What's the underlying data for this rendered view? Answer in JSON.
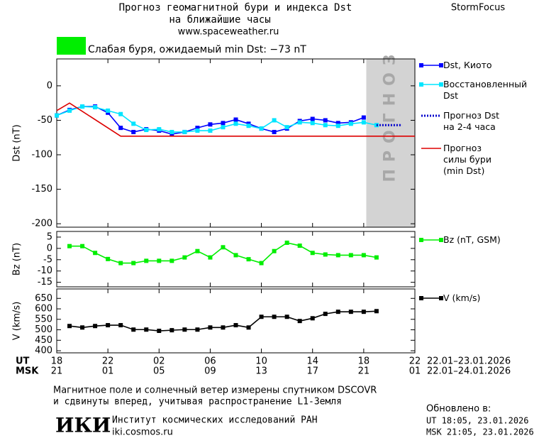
{
  "header": {
    "title_1": "Прогноз геомагнитной бури и индекса Dst",
    "title_2": "на ближайшие часы",
    "site": "www.spaceweather.ru",
    "brand": "StormFocus",
    "status_color": "#00ee00",
    "status": "Слабая буря, ожидаемый min Dst: −73 nT"
  },
  "chart_data": [
    {
      "type": "line",
      "ylabel": "Dst (nT)",
      "xlim": [
        0,
        28
      ],
      "ylim": [
        -205,
        39
      ],
      "yticks": [
        0,
        -50,
        -100,
        -150,
        -200
      ],
      "grid": false,
      "shaded_region": {
        "x": [
          24.2,
          28
        ],
        "label": "ПРОГНОЗ",
        "color": "#d3d3d3"
      },
      "series": [
        {
          "name": "Dst, Киото",
          "color": "#0000ff",
          "marker": true,
          "dash": false,
          "x": [
            0,
            1,
            2,
            3,
            4,
            5,
            6,
            7,
            8,
            9,
            10,
            11,
            12,
            13,
            14,
            15,
            16,
            17,
            18,
            19,
            20,
            21,
            22,
            23,
            24
          ],
          "values": [
            -43,
            -35,
            -30,
            -30,
            -39,
            -61,
            -67,
            -63,
            -65,
            -70,
            -67,
            -61,
            -56,
            -54,
            -49,
            -55,
            -62,
            -67,
            -62,
            -51,
            -48,
            -50,
            -54,
            -53,
            -46
          ]
        },
        {
          "name": "Восстановленный\nDst",
          "color": "#00e5ff",
          "marker": true,
          "dash": false,
          "x": [
            0,
            1,
            2,
            3,
            4,
            5,
            6,
            7,
            8,
            9,
            10,
            11,
            12,
            13,
            14,
            15,
            16,
            17,
            18,
            19,
            20,
            21,
            22,
            23,
            24,
            25
          ],
          "values": [
            -43,
            -36,
            -30,
            -31,
            -36,
            -41,
            -55,
            -64,
            -63,
            -67,
            -67,
            -65,
            -65,
            -60,
            -55,
            -58,
            -62,
            -50,
            -60,
            -53,
            -54,
            -57,
            -58,
            -55,
            -53,
            -57
          ]
        },
        {
          "name": "Прогноз Dst\nна 2-4 часа",
          "color": "#0000cc",
          "marker": false,
          "dash": true,
          "x": [
            25,
            26,
            27
          ],
          "values": [
            -57,
            -57,
            -57
          ]
        },
        {
          "name": "Прогноз\nсилы бури\n(min Dst)",
          "color": "#dd0000",
          "marker": false,
          "dash": false,
          "x": [
            0,
            1,
            5,
            28
          ],
          "values": [
            -36,
            -25,
            -73,
            -73
          ]
        }
      ]
    },
    {
      "type": "line",
      "ylabel": "Bz (nT)",
      "xlim": [
        0,
        28
      ],
      "ylim": [
        -17,
        7.5
      ],
      "yticks": [
        5,
        0,
        -5,
        -10,
        -15
      ],
      "grid": false,
      "series": [
        {
          "name": "Bz (nT, GSM)",
          "color": "#00ee00",
          "marker": true,
          "dash": false,
          "x": [
            1,
            2,
            3,
            4,
            5,
            6,
            7,
            8,
            9,
            10,
            11,
            12,
            13,
            14,
            15,
            16,
            17,
            18,
            19,
            20,
            21,
            22,
            23,
            24,
            25
          ],
          "values": [
            1,
            1,
            -2,
            -4.7,
            -6.5,
            -6.5,
            -5.5,
            -5.5,
            -5.5,
            -4,
            -1.2,
            -4,
            0.5,
            -3,
            -4.8,
            -6.5,
            -1.2,
            2.5,
            1.2,
            -2,
            -2.7,
            -3,
            -3,
            -3,
            -4
          ]
        }
      ]
    },
    {
      "type": "line",
      "ylabel": "V (km/s)",
      "xlim": [
        0,
        28
      ],
      "ylim": [
        390,
        695
      ],
      "yticks": [
        400,
        450,
        500,
        550,
        600,
        650
      ],
      "grid": false,
      "xaxis_label": "UT",
      "x_range": "22.01–23.01.2026",
      "xticks": [
        {
          "value": 0,
          "label": "18"
        },
        {
          "value": 4,
          "label": "22"
        },
        {
          "value": 8,
          "label": "02"
        },
        {
          "value": 12,
          "label": "06"
        },
        {
          "value": 16,
          "label": "10"
        },
        {
          "value": 20,
          "label": "14"
        },
        {
          "value": 24,
          "label": "18"
        },
        {
          "value": 28,
          "label": "22"
        }
      ],
      "x2axis_label": "MSK",
      "x2_range": "22.01–24.01.2026",
      "x2ticks": [
        {
          "value": 0,
          "label": "21"
        },
        {
          "value": 4,
          "label": "01"
        },
        {
          "value": 8,
          "label": "05"
        },
        {
          "value": 12,
          "label": "09"
        },
        {
          "value": 16,
          "label": "13"
        },
        {
          "value": 20,
          "label": "17"
        },
        {
          "value": 24,
          "label": "21"
        },
        {
          "value": 28,
          "label": "01"
        }
      ],
      "series": [
        {
          "name": "V (km/s)",
          "color": "#000000",
          "marker": true,
          "dash": false,
          "x": [
            1,
            2,
            3,
            4,
            5,
            6,
            7,
            8,
            9,
            10,
            11,
            12,
            13,
            14,
            15,
            16,
            17,
            18,
            19,
            20,
            21,
            22,
            23,
            24,
            25
          ],
          "values": [
            518,
            511,
            518,
            522,
            522,
            501,
            501,
            495,
            498,
            501,
            501,
            511,
            511,
            522,
            511,
            562,
            562,
            562,
            542,
            555,
            576,
            586,
            586,
            586,
            589
          ]
        }
      ]
    }
  ],
  "footer": {
    "note_1": "Магнитное поле и солнечный ветер измерены спутником DSCOVR",
    "note_2": "и сдвинуты вперед, учитывая распространение L1-Земля",
    "logo": "ИКИ",
    "institute": "Институт космических исследований РАН",
    "url": "iki.cosmos.ru",
    "updated": "Обновлено в:",
    "updated_ut": "UT  18:05, 23.01.2026",
    "updated_msk": "MSK 21:05, 23.01.2026"
  }
}
